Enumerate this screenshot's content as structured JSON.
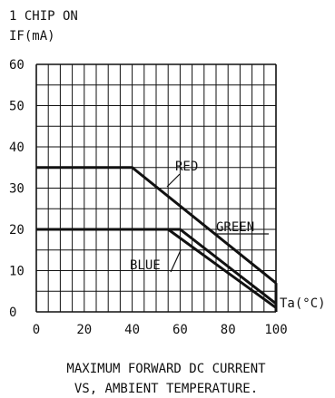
{
  "header": {
    "line1": "1 CHIP ON",
    "line2": "IF(mA)"
  },
  "caption": {
    "line1": "MAXIMUM FORWARD DC CURRENT",
    "line2": "VS, AMBIENT TEMPERATURE."
  },
  "chart_data": {
    "type": "line",
    "title": "MAXIMUM FORWARD DC CURRENT VS, AMBIENT TEMPERATURE.",
    "xlabel": "Ta(°C)",
    "ylabel": "IF(mA)",
    "xlim": [
      0,
      100
    ],
    "ylim": [
      0,
      60
    ],
    "x_ticks": [
      "0",
      "20",
      "40",
      "60",
      "80",
      "100"
    ],
    "y_ticks": [
      "0",
      "10",
      "20",
      "30",
      "40",
      "50",
      "60"
    ],
    "grid": true,
    "series": [
      {
        "name": "RED",
        "x": [
          0,
          40,
          100
        ],
        "y": [
          35,
          35,
          7
        ]
      },
      {
        "name": "GREEN",
        "x": [
          0,
          60,
          100
        ],
        "y": [
          20,
          20,
          2
        ]
      },
      {
        "name": "BLUE",
        "x": [
          0,
          55,
          100
        ],
        "y": [
          20,
          20,
          1
        ]
      }
    ],
    "end_marker": {
      "x": 100,
      "y_range": [
        0,
        7
      ]
    },
    "annotations": [
      "RED",
      "GREEN",
      "BLUE"
    ]
  }
}
